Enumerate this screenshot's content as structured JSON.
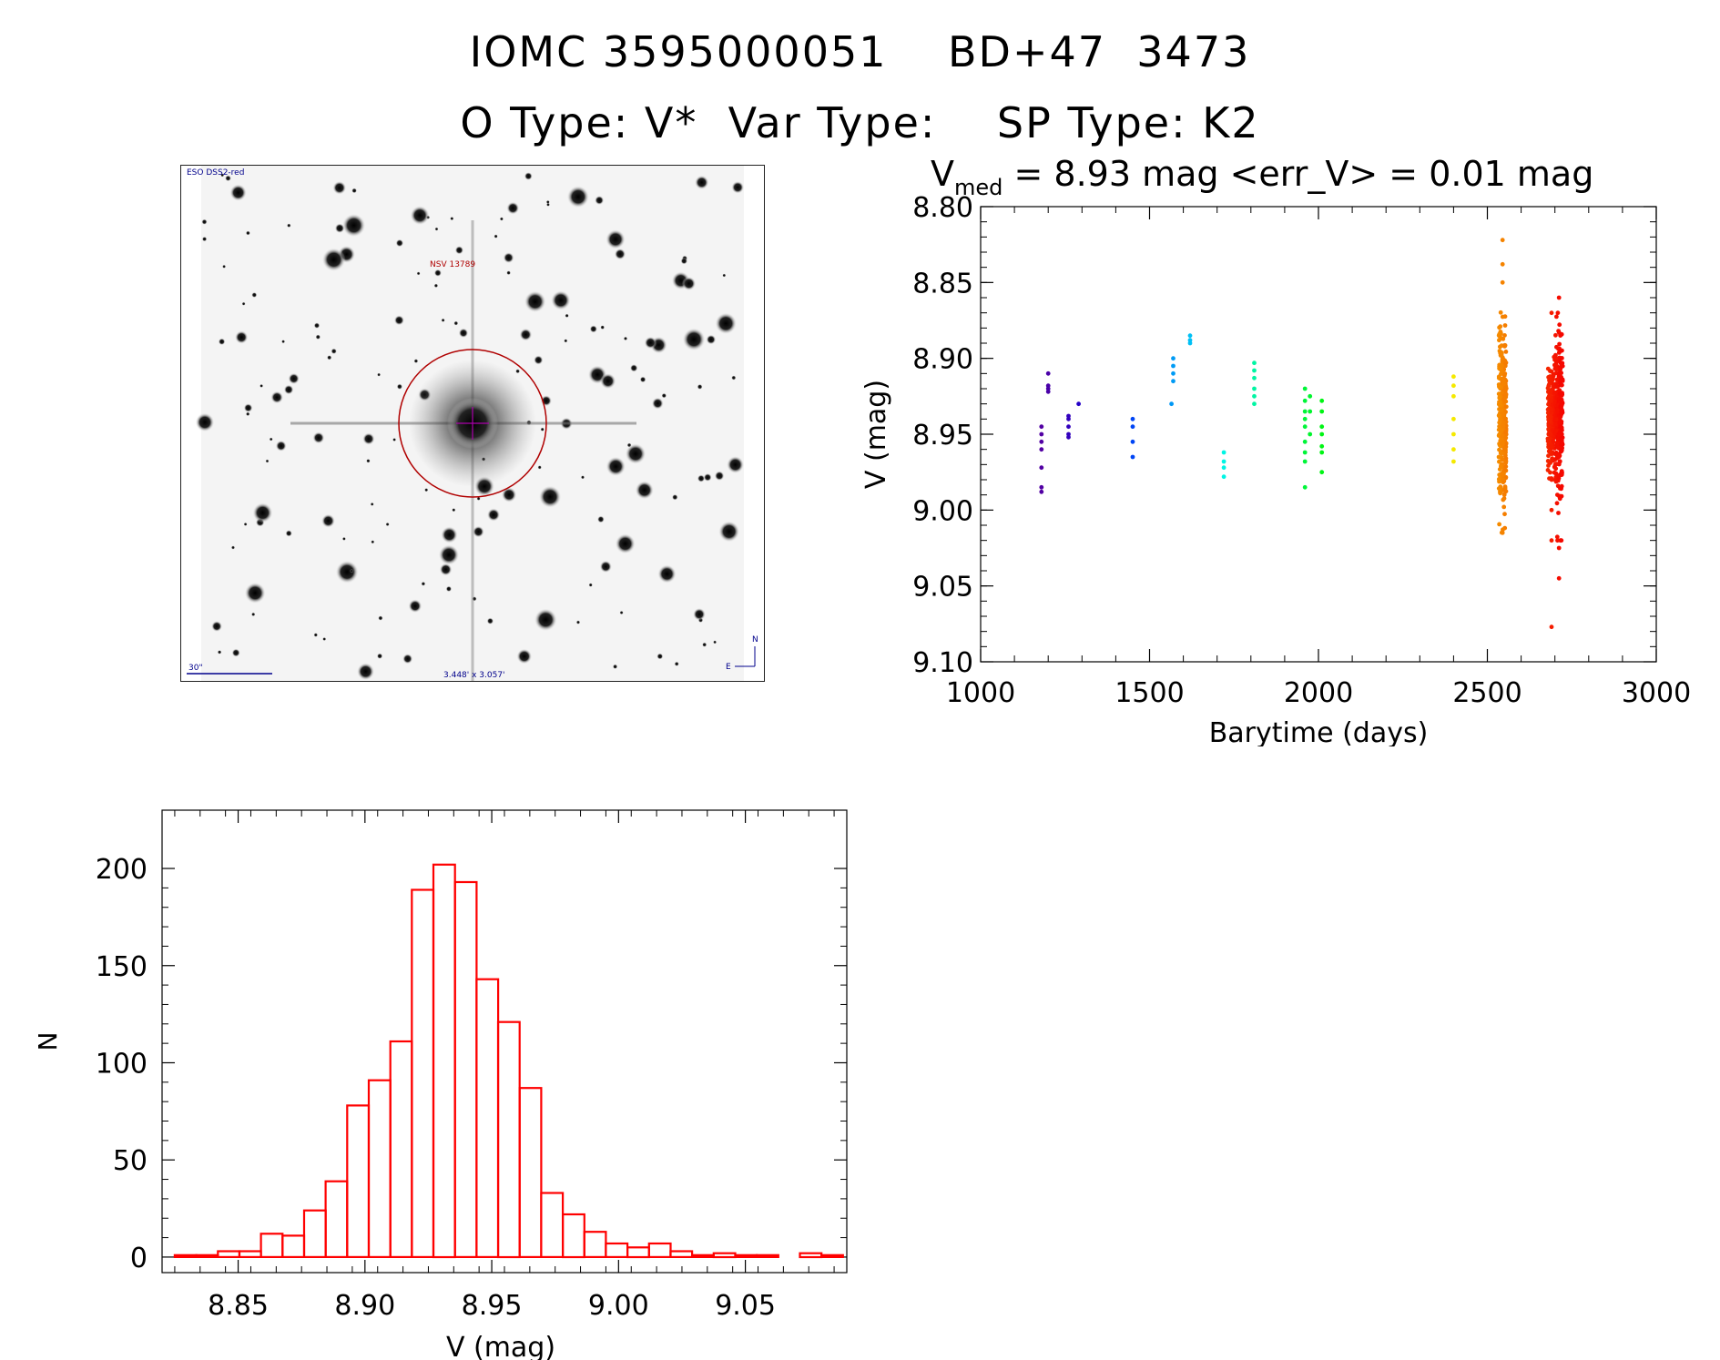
{
  "header": {
    "title": "IOMC 3595000051    BD+47  3473",
    "subtitle": "O Type: V*  Var Type:    SP Type: K2"
  },
  "finder": {
    "survey_label": "ESO DSS2-red",
    "object_label": "NSV 13789",
    "scale_label": "30\"",
    "fov_label": "3.448' x 3.057'",
    "north_label": "N",
    "east_label": "E",
    "colors": {
      "annotation": "#b00000",
      "scale": "#00008b",
      "crosshair": "#aa00aa"
    }
  },
  "chart_data": [
    {
      "type": "scatter",
      "title": "V_med = 8.93 mag <err_V> = 0.01 mag",
      "title_main": "V",
      "title_sub": "med",
      "title_rest": " = 8.93 mag <err_V> = 0.01 mag",
      "xlabel": "Barytime (days)",
      "ylabel": "V (mag)",
      "xlim": [
        1000,
        3000
      ],
      "ylim": [
        9.1,
        8.8
      ],
      "y_inverted": true,
      "xticks": [
        1000,
        1500,
        2000,
        2500,
        3000
      ],
      "yticks": [
        "8.80",
        "8.85",
        "8.90",
        "8.95",
        "9.00",
        "9.05",
        "9.10"
      ],
      "color_scale": "rainbow by time (violet early, red late)",
      "groups": [
        {
          "x": 1180,
          "y": [
            8.945,
            8.95,
            8.955,
            8.96,
            8.972,
            8.985,
            8.988
          ]
        },
        {
          "x": 1200,
          "y": [
            8.91,
            8.918,
            8.92,
            8.922
          ]
        },
        {
          "x": 1260,
          "y": [
            8.938,
            8.94,
            8.945,
            8.95,
            8.952
          ]
        },
        {
          "x": 1290,
          "y": [
            8.93
          ]
        },
        {
          "x": 1450,
          "y": [
            8.94,
            8.945,
            8.955,
            8.965
          ]
        },
        {
          "x": 1565,
          "y": [
            8.93
          ]
        },
        {
          "x": 1570,
          "y": [
            8.9,
            8.905,
            8.91,
            8.915
          ]
        },
        {
          "x": 1620,
          "y": [
            8.885,
            8.888,
            8.89
          ]
        },
        {
          "x": 1720,
          "y": [
            8.962,
            8.968,
            8.972,
            8.978
          ]
        },
        {
          "x": 1810,
          "y": [
            8.903,
            8.908,
            8.913,
            8.92,
            8.925,
            8.93
          ]
        },
        {
          "x": 1960,
          "y": [
            8.92,
            8.928,
            8.935,
            8.94,
            8.945,
            8.955,
            8.962,
            8.968,
            8.985
          ]
        },
        {
          "x": 1975,
          "y": [
            8.925,
            8.935,
            8.95
          ]
        },
        {
          "x": 2010,
          "y": [
            8.928,
            8.935,
            8.945,
            8.95,
            8.958,
            8.962,
            8.975
          ]
        },
        {
          "x": 2400,
          "y": [
            8.912,
            8.918,
            8.925,
            8.94,
            8.95,
            8.96,
            8.968
          ]
        },
        {
          "x": 2545,
          "ymin": 8.86,
          "ymax": 9.02,
          "ycenter": 8.94,
          "n": 330,
          "outliers": [
            8.822,
            8.838,
            8.85,
            9.015
          ]
        },
        {
          "x": 2690,
          "ymin": 8.88,
          "ymax": 8.98,
          "ycenter": 8.94,
          "n": 200,
          "outliers": [
            8.87,
            9.0,
            9.02,
            9.077
          ]
        },
        {
          "x": 2712,
          "ymin": 8.87,
          "ymax": 9.02,
          "ycenter": 8.94,
          "n": 260,
          "outliers": [
            8.86,
            9.025,
            9.045
          ]
        }
      ]
    },
    {
      "type": "bar",
      "style": "histogram",
      "xlabel": "V (mag)",
      "ylabel": "N",
      "xlim": [
        8.82,
        9.09
      ],
      "ylim": [
        0,
        210
      ],
      "xticks": [
        "8.85",
        "8.90",
        "8.95",
        "9.00",
        "9.05"
      ],
      "yticks": [
        "0",
        "50",
        "100",
        "150",
        "200"
      ],
      "color": "#ff0000",
      "bin_start": 8.825,
      "bin_width": 0.0085,
      "values": [
        1,
        1,
        3,
        3,
        12,
        11,
        24,
        39,
        78,
        91,
        111,
        189,
        202,
        193,
        143,
        121,
        87,
        33,
        22,
        13,
        7,
        5,
        7,
        3,
        1,
        2,
        1,
        1,
        0,
        2,
        1
      ]
    }
  ]
}
